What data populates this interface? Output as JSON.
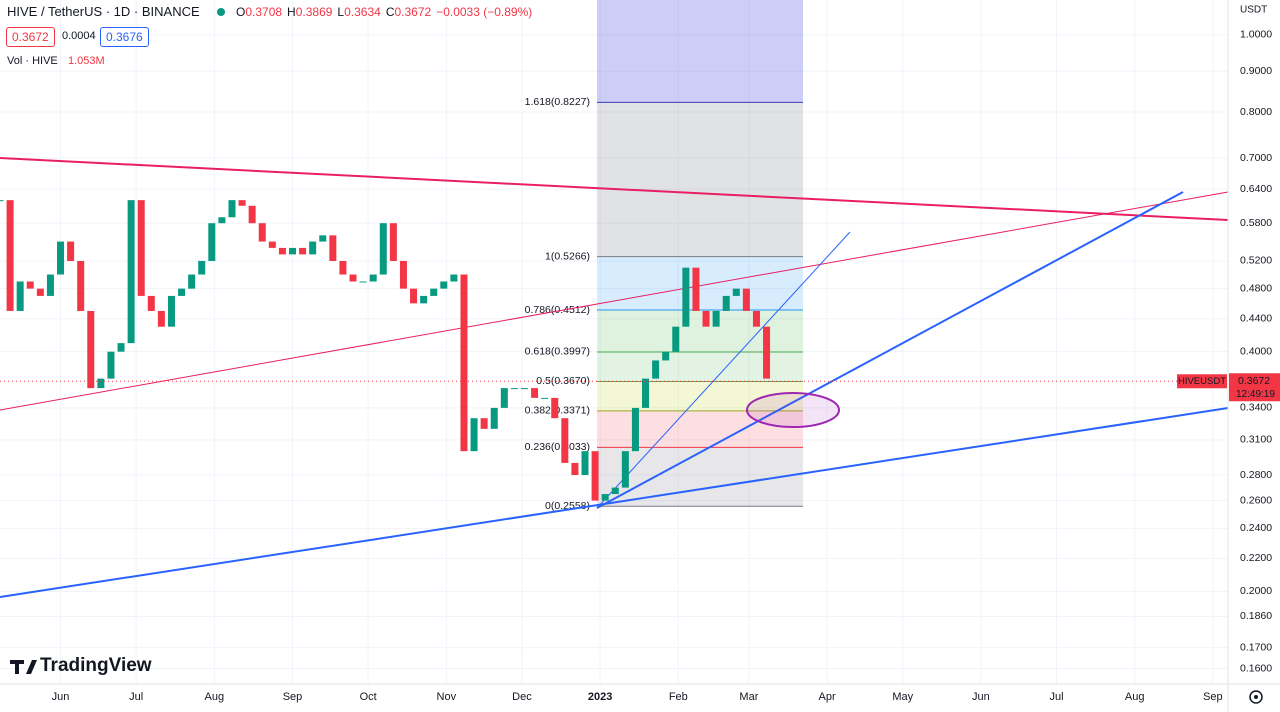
{
  "header": {
    "symbol": "HIVE / TetherUS · 1D · BINANCE",
    "ohlc": [
      {
        "key": "O",
        "value": "0.3708"
      },
      {
        "key": "H",
        "value": "0.3869"
      },
      {
        "key": "L",
        "value": "0.3634"
      },
      {
        "key": "C",
        "value": "0.3672"
      }
    ],
    "change": "−0.0033 (−0.89%)",
    "spread": "0.0004",
    "ask": "0.3676",
    "volume_label": "Vol · HIVE",
    "volume": "1.053M"
  },
  "brand": "TradingView",
  "chart_data": {
    "type": "candlestick",
    "x": [
      0,
      4,
      8,
      12,
      16,
      20,
      24,
      28,
      32,
      36,
      40,
      44,
      48,
      52,
      56,
      60,
      64,
      68,
      72,
      76,
      80,
      84,
      88,
      92,
      96,
      100,
      104,
      108,
      112,
      116,
      120,
      124,
      128,
      132,
      136,
      140,
      144,
      148,
      152,
      156,
      160,
      164,
      168,
      172,
      176,
      180,
      184,
      188,
      192,
      196,
      200,
      204,
      208,
      212,
      216,
      220,
      224,
      228,
      232,
      236,
      240,
      244,
      248,
      252,
      256,
      260,
      264,
      268,
      272,
      276,
      280,
      284,
      288,
      292,
      296,
      300,
      304
    ],
    "values": [
      0.62,
      0.45,
      0.49,
      0.48,
      0.47,
      0.5,
      0.55,
      0.52,
      0.45,
      0.36,
      0.37,
      0.4,
      0.41,
      0.62,
      0.47,
      0.45,
      0.43,
      0.47,
      0.48,
      0.5,
      0.52,
      0.58,
      0.59,
      0.62,
      0.61,
      0.58,
      0.55,
      0.54,
      0.53,
      0.54,
      0.53,
      0.55,
      0.56,
      0.52,
      0.5,
      0.49,
      0.49,
      0.5,
      0.58,
      0.52,
      0.48,
      0.46,
      0.47,
      0.48,
      0.49,
      0.5,
      0.3,
      0.33,
      0.32,
      0.34,
      0.36,
      0.36,
      0.36,
      0.35,
      0.35,
      0.33,
      0.29,
      0.28,
      0.3,
      0.26,
      0.265,
      0.27,
      0.3,
      0.34,
      0.37,
      0.39,
      0.4,
      0.43,
      0.51,
      0.45,
      0.43,
      0.45,
      0.47,
      0.48,
      0.45,
      0.43,
      0.37
    ],
    "colors": {
      "up": "#089981",
      "down": "#f23645"
    },
    "log_scale": true,
    "grid": true,
    "ylim": [
      0.153,
      1.106
    ],
    "yticks": [
      {
        "value": 1,
        "label": "1.0000"
      },
      {
        "value": 0.9,
        "label": "0.9000"
      },
      {
        "value": 0.8,
        "label": "0.8000"
      },
      {
        "value": 0.7,
        "label": "0.7000"
      },
      {
        "value": 0.64,
        "label": "0.6400"
      },
      {
        "value": 0.58,
        "label": "0.5800"
      },
      {
        "value": 0.52,
        "label": "0.5200"
      },
      {
        "value": 0.48,
        "label": "0.4800"
      },
      {
        "value": 0.44,
        "label": "0.4400"
      },
      {
        "value": 0.4,
        "label": "0.4000"
      },
      {
        "value": 0.34,
        "label": "0.3400"
      },
      {
        "value": 0.31,
        "label": "0.3100"
      },
      {
        "value": 0.28,
        "label": "0.2800"
      },
      {
        "value": 0.26,
        "label": "0.2600"
      },
      {
        "value": 0.24,
        "label": "0.2400"
      },
      {
        "value": 0.22,
        "label": "0.2200"
      },
      {
        "value": 0.2,
        "label": "0.2000"
      },
      {
        "value": 0.186,
        "label": "0.1860"
      },
      {
        "value": 0.17,
        "label": "0.1700"
      },
      {
        "value": 0.16,
        "label": "0.1600"
      }
    ],
    "xlim": [
      0,
      487
    ],
    "xticks": [
      {
        "value": 24,
        "label": "Jun"
      },
      {
        "value": 54,
        "label": "Jul"
      },
      {
        "value": 85,
        "label": "Aug"
      },
      {
        "value": 116,
        "label": "Sep"
      },
      {
        "value": 146,
        "label": "Oct"
      },
      {
        "value": 177,
        "label": "Nov"
      },
      {
        "value": 207,
        "label": "Dec"
      },
      {
        "value": 238,
        "label": "2023"
      },
      {
        "value": 269,
        "label": "Feb"
      },
      {
        "value": 297,
        "label": "Mar"
      },
      {
        "value": 328,
        "label": "Apr"
      },
      {
        "value": 358,
        "label": "May"
      },
      {
        "value": 389,
        "label": "Jun"
      },
      {
        "value": 419,
        "label": "Jul"
      },
      {
        "value": 450,
        "label": "Aug"
      },
      {
        "value": 481,
        "label": "Sep"
      }
    ],
    "currency": "USDT",
    "symbol_tag": "HIVEUSDT",
    "last_price": 0.3672,
    "countdown": "12:49:19",
    "fib": {
      "top_fill": "rgba(98,98,230,0.32)",
      "levels": [
        {
          "label": "1.618(0.8227)",
          "value": 0.8227,
          "color": "#3c3cb8",
          "fill": "rgba(120,123,134,0.22)"
        },
        {
          "label": "1(0.5266)",
          "value": 0.5266,
          "color": "#787b86",
          "fill": "rgba(33,150,243,0.18)"
        },
        {
          "label": "0.786(0.4512)",
          "value": 0.4512,
          "color": "#2196f3",
          "fill": "rgba(76,175,80,0.18)"
        },
        {
          "label": "0.618(0.3997)",
          "value": 0.3997,
          "color": "#4caf50",
          "fill": "rgba(76,175,80,0.16)"
        },
        {
          "label": "0.5(0.3670)",
          "value": 0.367,
          "color": "#4caf50",
          "fill": "rgba(205,220,57,0.22)"
        },
        {
          "label": "0.382(0.3371)",
          "value": 0.3371,
          "color": "#9ca825",
          "fill": "rgba(242,54,69,0.16)"
        },
        {
          "label": "0.236(0.3033)",
          "value": 0.3033,
          "color": "#f23645",
          "fill": "rgba(120,123,134,0.18)"
        },
        {
          "label": "0(0.2558)",
          "value": 0.2558,
          "color": "#787b86"
        }
      ]
    }
  }
}
